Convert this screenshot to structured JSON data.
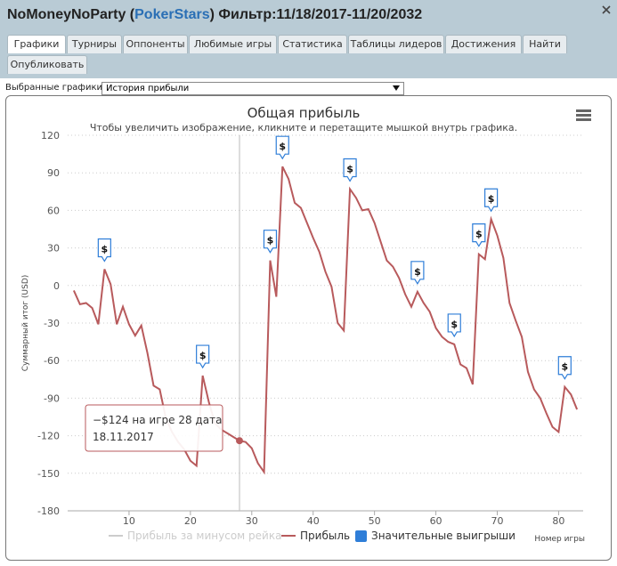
{
  "header": {
    "title_prefix": "NoMoneyNoParty (",
    "site": "PokerStars",
    "title_suffix": ") Фильтр:11/18/2017-11/20/2032"
  },
  "tabs": [
    "Графики",
    "Турниры",
    "Оппоненты",
    "Любимые игры",
    "Статистика",
    "Таблицы лидеров",
    "Достижения",
    "Найти",
    "Опубликовать"
  ],
  "selector": {
    "label": "Выбранные графики:",
    "value": "История прибыли"
  },
  "chart_data": {
    "type": "line",
    "title": "Общая прибыль",
    "subtitle": "Чтобы увеличить изображение, кликните и перетащите мышкой внутрь графика.",
    "y_label": "Суммарный итог (USD)",
    "x_label": "Номер игры",
    "xlim": [
      0,
      84
    ],
    "xticks": [
      10,
      20,
      30,
      40,
      50,
      60,
      70,
      80
    ],
    "ylim": [
      -180,
      120
    ],
    "yticks": [
      -180,
      -150,
      -120,
      -90,
      -60,
      -30,
      0,
      30,
      60,
      90,
      120
    ],
    "grid": true,
    "series": [
      {
        "name": "Прибыль за минусом рейка",
        "color": "#cccccc",
        "hidden": true
      },
      {
        "name": "Прибыль",
        "color": "#b85a5c",
        "x": [
          1,
          2,
          3,
          4,
          5,
          6,
          7,
          8,
          9,
          10,
          11,
          12,
          13,
          14,
          15,
          16,
          17,
          18,
          19,
          20,
          21,
          22,
          23,
          24,
          25,
          26,
          27,
          28,
          29,
          30,
          31,
          32,
          33,
          34,
          35,
          36,
          37,
          38,
          39,
          40,
          41,
          42,
          43,
          44,
          45,
          46,
          47,
          48,
          49,
          50,
          51,
          52,
          53,
          54,
          55,
          56,
          57,
          58,
          59,
          60,
          61,
          62,
          63,
          64,
          65,
          66,
          67,
          68,
          69,
          70,
          71,
          72,
          73,
          74,
          75,
          76,
          77,
          78,
          79,
          80,
          81,
          82,
          83
        ],
        "values": [
          -4,
          -15,
          -14,
          -18,
          -31,
          13,
          1,
          -31,
          -17,
          -31,
          -40,
          -32,
          -54,
          -80,
          -83,
          -106,
          -117,
          -125,
          -131,
          -140,
          -144,
          -72,
          -93,
          -110,
          -115,
          -118,
          -121,
          -124,
          -125,
          -130,
          -142,
          -149,
          20,
          -9,
          95,
          85,
          66,
          62,
          50,
          38,
          27,
          11,
          -1,
          -30,
          -36,
          77,
          70,
          60,
          61,
          50,
          35,
          20,
          15,
          6,
          -7,
          -17,
          -5,
          -14,
          -21,
          -34,
          -41,
          -45,
          -47,
          -63,
          -66,
          -79,
          25,
          21,
          53,
          40,
          22,
          -14,
          -28,
          -41,
          -69,
          -83,
          -90,
          -102,
          -113,
          -117,
          -81,
          -87,
          -99
        ]
      },
      {
        "name": "Значительные выигрыши",
        "color": "#2f7ed8",
        "marker_label": "$",
        "x": [
          6,
          22,
          33,
          35,
          46,
          57,
          63,
          67,
          69,
          81
        ],
        "values": [
          13,
          -72,
          20,
          95,
          77,
          -5,
          -47,
          25,
          53,
          -81
        ]
      }
    ],
    "tooltip": {
      "x": 28,
      "value": -124,
      "text": [
        "−$124 на игре 28 дата",
        "18.11.2017"
      ]
    }
  }
}
